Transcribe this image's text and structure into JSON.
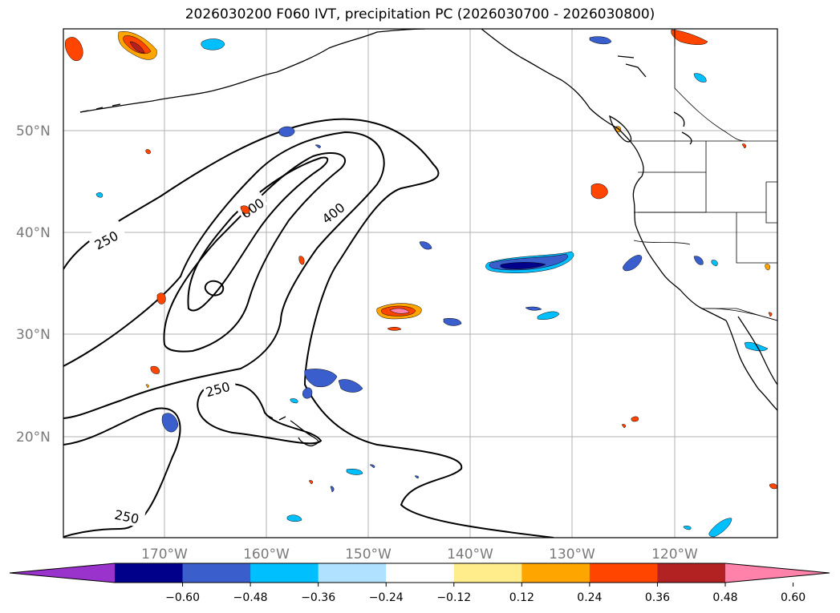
{
  "title": "2026030200 F060 IVT, precipitation PC (2026030700 - 2026030800)",
  "lat_labels": [
    "50°N",
    "40°N",
    "30°N",
    "20°N"
  ],
  "lon_labels": [
    "170°W",
    "160°W",
    "150°W",
    "140°W",
    "130°W",
    "120°W"
  ],
  "contour_labels": [
    "250",
    "600",
    "400",
    "250",
    "250"
  ],
  "colorbar": {
    "ticks": [
      "−0.60",
      "−0.48",
      "−0.36",
      "−0.24",
      "−0.12",
      "0.12",
      "0.24",
      "0.36",
      "0.48",
      "0.60"
    ],
    "colors": [
      "#9933cc",
      "#00008b",
      "#3a5fcd",
      "#00bfff",
      "#b0e2ff",
      "#ffffff",
      "#ffec8b",
      "#ffa500",
      "#ff4500",
      "#b22222",
      "#ff82ab"
    ]
  }
}
